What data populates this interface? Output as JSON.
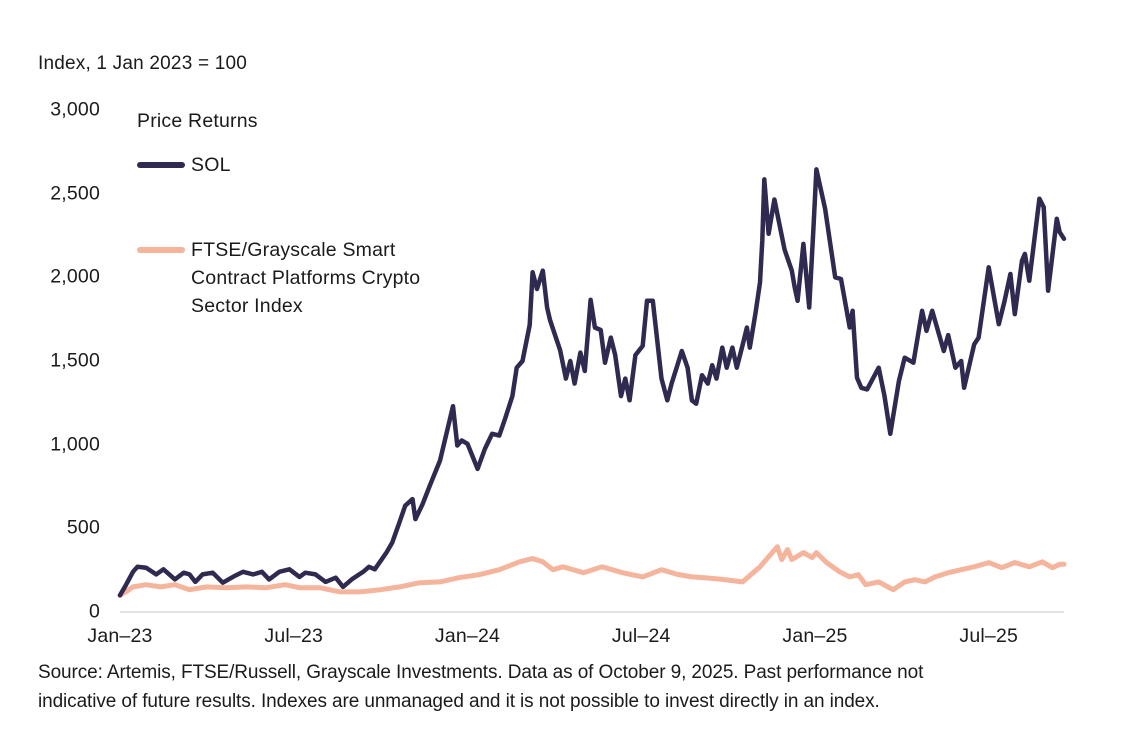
{
  "chart_data": {
    "type": "line",
    "title": "Index, 1 Jan 2023 = 100",
    "legend_title": "Price Returns",
    "xlim": [
      0,
      32.6
    ],
    "ylim": [
      0,
      3000
    ],
    "grid": "baseline-only",
    "legend_position": "top-left-inside",
    "x_unit": "months since 1 Jan 2023",
    "axis_color": "#d8d8d8",
    "x_ticks": [
      {
        "m": 0,
        "label": "Jan–23"
      },
      {
        "m": 6,
        "label": "Jul–23"
      },
      {
        "m": 12,
        "label": "Jan–24"
      },
      {
        "m": 18,
        "label": "Jul–24"
      },
      {
        "m": 24,
        "label": "Jan–25"
      },
      {
        "m": 30,
        "label": "Jul–25"
      }
    ],
    "y_ticks": [
      {
        "v": 0,
        "label": "0"
      },
      {
        "v": 500,
        "label": "500"
      },
      {
        "v": 1000,
        "label": "1,000"
      },
      {
        "v": 1500,
        "label": "1,500"
      },
      {
        "v": 2000,
        "label": "2,000"
      },
      {
        "v": 2500,
        "label": "2,500"
      },
      {
        "v": 3000,
        "label": "3,000"
      }
    ],
    "series": [
      {
        "name": "FTSE/Grayscale Smart Contract Platforms Crypto Sector Index",
        "color": "#f5b49c",
        "stroke_width": 5,
        "points": [
          [
            0,
            100
          ],
          [
            0.2,
            120
          ],
          [
            0.45,
            150
          ],
          [
            0.9,
            163
          ],
          [
            1.4,
            150
          ],
          [
            1.9,
            163
          ],
          [
            2.4,
            133
          ],
          [
            3.0,
            150
          ],
          [
            3.65,
            145
          ],
          [
            4.35,
            150
          ],
          [
            5.05,
            145
          ],
          [
            5.7,
            163
          ],
          [
            6.2,
            145
          ],
          [
            6.9,
            145
          ],
          [
            7.6,
            120
          ],
          [
            8.3,
            120
          ],
          [
            9.0,
            133
          ],
          [
            9.65,
            150
          ],
          [
            10.35,
            175
          ],
          [
            11.05,
            180
          ],
          [
            11.7,
            205
          ],
          [
            12.4,
            223
          ],
          [
            13.1,
            253
          ],
          [
            13.8,
            300
          ],
          [
            14.25,
            320
          ],
          [
            14.6,
            300
          ],
          [
            14.95,
            253
          ],
          [
            15.3,
            270
          ],
          [
            16.0,
            235
          ],
          [
            16.65,
            270
          ],
          [
            17.35,
            235
          ],
          [
            18.05,
            210
          ],
          [
            18.7,
            253
          ],
          [
            19.25,
            225
          ],
          [
            19.75,
            210
          ],
          [
            20.2,
            205
          ],
          [
            20.8,
            195
          ],
          [
            21.5,
            180
          ],
          [
            22.1,
            270
          ],
          [
            22.7,
            390
          ],
          [
            22.85,
            313
          ],
          [
            23.05,
            373
          ],
          [
            23.2,
            313
          ],
          [
            23.6,
            355
          ],
          [
            23.9,
            325
          ],
          [
            24.05,
            355
          ],
          [
            24.4,
            295
          ],
          [
            24.85,
            240
          ],
          [
            25.2,
            210
          ],
          [
            25.5,
            223
          ],
          [
            25.75,
            163
          ],
          [
            26.2,
            180
          ],
          [
            26.7,
            133
          ],
          [
            27.1,
            180
          ],
          [
            27.45,
            193
          ],
          [
            27.8,
            180
          ],
          [
            28.15,
            210
          ],
          [
            28.6,
            235
          ],
          [
            29.05,
            253
          ],
          [
            29.5,
            270
          ],
          [
            30.0,
            295
          ],
          [
            30.45,
            265
          ],
          [
            30.9,
            295
          ],
          [
            31.4,
            270
          ],
          [
            31.85,
            300
          ],
          [
            32.2,
            265
          ],
          [
            32.45,
            285
          ],
          [
            32.6,
            285
          ]
        ]
      },
      {
        "name": "SOL",
        "color": "#2f2a4f",
        "stroke_width": 4.5,
        "points": [
          [
            0,
            100
          ],
          [
            0.2,
            160
          ],
          [
            0.45,
            240
          ],
          [
            0.6,
            270
          ],
          [
            0.9,
            265
          ],
          [
            1.25,
            225
          ],
          [
            1.5,
            255
          ],
          [
            1.9,
            195
          ],
          [
            2.2,
            235
          ],
          [
            2.4,
            225
          ],
          [
            2.6,
            180
          ],
          [
            2.85,
            225
          ],
          [
            3.2,
            235
          ],
          [
            3.55,
            175
          ],
          [
            3.9,
            210
          ],
          [
            4.25,
            240
          ],
          [
            4.6,
            225
          ],
          [
            4.9,
            240
          ],
          [
            5.15,
            195
          ],
          [
            5.5,
            240
          ],
          [
            5.85,
            255
          ],
          [
            6.2,
            210
          ],
          [
            6.4,
            235
          ],
          [
            6.75,
            225
          ],
          [
            7.1,
            180
          ],
          [
            7.45,
            205
          ],
          [
            7.7,
            150
          ],
          [
            8.0,
            195
          ],
          [
            8.4,
            240
          ],
          [
            8.6,
            270
          ],
          [
            8.8,
            255
          ],
          [
            9.2,
            355
          ],
          [
            9.4,
            415
          ],
          [
            9.65,
            535
          ],
          [
            9.85,
            635
          ],
          [
            10.1,
            675
          ],
          [
            10.2,
            555
          ],
          [
            10.45,
            645
          ],
          [
            10.7,
            755
          ],
          [
            11.05,
            905
          ],
          [
            11.5,
            1230
          ],
          [
            11.65,
            995
          ],
          [
            11.8,
            1025
          ],
          [
            12.0,
            1005
          ],
          [
            12.35,
            855
          ],
          [
            12.6,
            975
          ],
          [
            12.85,
            1065
          ],
          [
            13.1,
            1055
          ],
          [
            13.3,
            1155
          ],
          [
            13.55,
            1290
          ],
          [
            13.7,
            1460
          ],
          [
            13.9,
            1500
          ],
          [
            14.15,
            1715
          ],
          [
            14.25,
            2030
          ],
          [
            14.4,
            1930
          ],
          [
            14.6,
            2040
          ],
          [
            14.75,
            1820
          ],
          [
            14.85,
            1745
          ],
          [
            15.2,
            1565
          ],
          [
            15.4,
            1395
          ],
          [
            15.55,
            1500
          ],
          [
            15.7,
            1365
          ],
          [
            15.9,
            1550
          ],
          [
            16.05,
            1440
          ],
          [
            16.25,
            1865
          ],
          [
            16.4,
            1700
          ],
          [
            16.6,
            1685
          ],
          [
            16.75,
            1490
          ],
          [
            16.95,
            1640
          ],
          [
            17.1,
            1535
          ],
          [
            17.3,
            1290
          ],
          [
            17.45,
            1395
          ],
          [
            17.6,
            1265
          ],
          [
            17.8,
            1535
          ],
          [
            18.05,
            1590
          ],
          [
            18.2,
            1860
          ],
          [
            18.4,
            1860
          ],
          [
            18.55,
            1625
          ],
          [
            18.7,
            1395
          ],
          [
            18.9,
            1265
          ],
          [
            19.05,
            1365
          ],
          [
            19.25,
            1475
          ],
          [
            19.4,
            1560
          ],
          [
            19.6,
            1460
          ],
          [
            19.75,
            1265
          ],
          [
            19.9,
            1245
          ],
          [
            20.1,
            1415
          ],
          [
            20.3,
            1365
          ],
          [
            20.45,
            1475
          ],
          [
            20.6,
            1395
          ],
          [
            20.8,
            1580
          ],
          [
            20.95,
            1460
          ],
          [
            21.15,
            1580
          ],
          [
            21.3,
            1460
          ],
          [
            21.5,
            1595
          ],
          [
            21.65,
            1700
          ],
          [
            21.75,
            1580
          ],
          [
            21.95,
            1790
          ],
          [
            22.1,
            1970
          ],
          [
            22.18,
            2220
          ],
          [
            22.25,
            2585
          ],
          [
            22.4,
            2260
          ],
          [
            22.6,
            2465
          ],
          [
            22.95,
            2165
          ],
          [
            23.2,
            2040
          ],
          [
            23.3,
            1940
          ],
          [
            23.4,
            1860
          ],
          [
            23.6,
            2200
          ],
          [
            23.8,
            1820
          ],
          [
            23.95,
            2300
          ],
          [
            24.05,
            2645
          ],
          [
            24.35,
            2410
          ],
          [
            24.7,
            2000
          ],
          [
            24.9,
            1990
          ],
          [
            25.2,
            1700
          ],
          [
            25.3,
            1800
          ],
          [
            25.45,
            1400
          ],
          [
            25.6,
            1340
          ],
          [
            25.8,
            1330
          ],
          [
            26.2,
            1460
          ],
          [
            26.4,
            1290
          ],
          [
            26.6,
            1065
          ],
          [
            26.9,
            1380
          ],
          [
            27.1,
            1520
          ],
          [
            27.4,
            1490
          ],
          [
            27.7,
            1800
          ],
          [
            27.85,
            1680
          ],
          [
            28.05,
            1800
          ],
          [
            28.45,
            1560
          ],
          [
            28.6,
            1655
          ],
          [
            28.85,
            1460
          ],
          [
            29.05,
            1500
          ],
          [
            29.15,
            1340
          ],
          [
            29.5,
            1600
          ],
          [
            29.65,
            1640
          ],
          [
            30.0,
            2060
          ],
          [
            30.35,
            1720
          ],
          [
            30.55,
            1860
          ],
          [
            30.75,
            2020
          ],
          [
            30.9,
            1780
          ],
          [
            31.15,
            2100
          ],
          [
            31.25,
            2140
          ],
          [
            31.4,
            1980
          ],
          [
            31.75,
            2470
          ],
          [
            31.9,
            2420
          ],
          [
            32.05,
            1920
          ],
          [
            32.35,
            2350
          ],
          [
            32.45,
            2270
          ],
          [
            32.6,
            2230
          ]
        ]
      }
    ]
  },
  "legend": {
    "title": "Price Returns",
    "sol_label": "SOL",
    "index_label_lines": [
      "FTSE/Grayscale Smart",
      "Contract Platforms Crypto",
      "Sector Index"
    ]
  },
  "footer": {
    "lines": [
      "Source: Artemis, FTSE/Russell, Grayscale Investments. Data as of October 9, 2025. Past performance not",
      "indicative of future results. Indexes are unmanaged and it is not possible to invest directly in an index."
    ]
  }
}
